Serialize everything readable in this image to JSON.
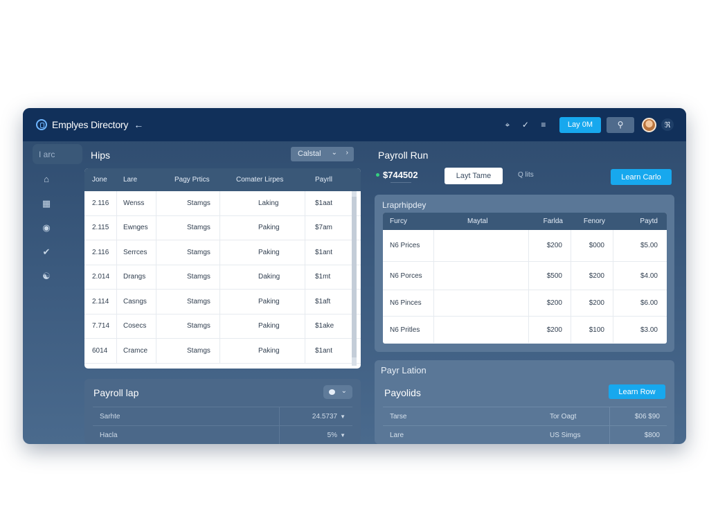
{
  "header": {
    "title": "Emplyes Directory",
    "layout_button": "Lay 0M",
    "toolbar_icons": [
      "grid-icon",
      "filter-icon",
      "menu-icon"
    ]
  },
  "sidebar": {
    "search_placeholder": "I arc",
    "icons": [
      "home-icon",
      "building-icon",
      "globe-icon",
      "check-icon",
      "users-icon"
    ]
  },
  "employees": {
    "title": "Hips",
    "category_select": "Calstal",
    "columns": [
      "Jone",
      "Lare",
      "Pagy Prtics",
      "Comater Lirpes",
      "Payrll"
    ],
    "rows": [
      [
        "2.116",
        "Wenss",
        "Stamgs",
        "Laking",
        "$1aat"
      ],
      [
        "2.115",
        "Ewnges",
        "Stamgs",
        "Paking",
        "$7am"
      ],
      [
        "2.116",
        "Serrces",
        "Stamgs",
        "Paking",
        "$1ant"
      ],
      [
        "2.014",
        "Drangs",
        "Stamgs",
        "Daking",
        "$1mt"
      ],
      [
        "2.114",
        "Casngs",
        "Stamgs",
        "Paking",
        "$1aft"
      ],
      [
        "7.714",
        "Cosecs",
        "Stamgs",
        "Paking",
        "$1ake"
      ],
      [
        "6014",
        "Cramce",
        "Stamgs",
        "Paking",
        "$1ant"
      ]
    ]
  },
  "payroll_top": {
    "title": "Payroll lap",
    "rows": [
      {
        "label": "Sarhte",
        "value": "24.5737"
      },
      {
        "label": "Hacla",
        "value": "5%"
      }
    ]
  },
  "payroll_run": {
    "title": "Payroll Run",
    "amount": "$744502",
    "amount_sub": "—————",
    "white_button": "Layt Tame",
    "search_link": "Q lits",
    "blue_button": "Learn Carlo"
  },
  "history": {
    "title": "Lraprhipdey",
    "columns": [
      "Furcy",
      "Maytal",
      "Farlda",
      "Fenory",
      "Paytd"
    ],
    "rows": [
      [
        "N6 Prices",
        "",
        "$200",
        "$000",
        "$5.00"
      ],
      [
        "N6 Porces",
        "",
        "$500",
        "$200",
        "$4.00"
      ],
      [
        "N6 Pinces",
        "",
        "$200",
        "$200",
        "$6.00"
      ],
      [
        "N6 Pritles",
        "",
        "$200",
        "$100",
        "$3.00"
      ]
    ]
  },
  "payroll_lation": {
    "subtitle": "Payr Lation",
    "title": "Payolids",
    "button": "Learn Row",
    "rows": [
      {
        "label": "Tarse",
        "mid": "Tor Oagt",
        "value": "$06 $90"
      },
      {
        "label": "Lare",
        "mid": "US Simgs",
        "value": "$800"
      }
    ]
  },
  "colors": {
    "header_bg": "#11305a",
    "accent_blue": "#17a8ee",
    "panel_bg": "#5a7797",
    "table_header_bg": "#3a5878"
  }
}
